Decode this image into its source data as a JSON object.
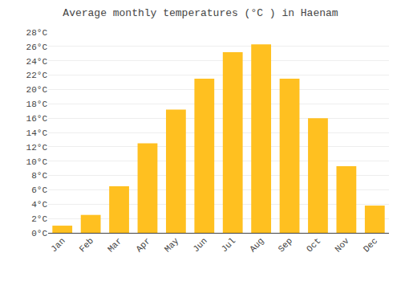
{
  "chart_data": {
    "type": "bar",
    "title": "Average monthly temperatures (°C ) in Haenam",
    "categories": [
      "Jan",
      "Feb",
      "Mar",
      "Apr",
      "May",
      "Jun",
      "Jul",
      "Aug",
      "Sep",
      "Oct",
      "Nov",
      "Dec"
    ],
    "values": [
      1.0,
      2.5,
      6.5,
      12.5,
      17.2,
      21.5,
      25.2,
      26.3,
      21.5,
      16.0,
      9.3,
      3.8
    ],
    "color": "#FFC020",
    "ylim": [
      0,
      28
    ],
    "yticks": [
      {
        "value": 0,
        "label": "0°C"
      },
      {
        "value": 2,
        "label": "2°C"
      },
      {
        "value": 4,
        "label": "4°C"
      },
      {
        "value": 6,
        "label": "6°C"
      },
      {
        "value": 8,
        "label": "8°C"
      },
      {
        "value": 10,
        "label": "10°C"
      },
      {
        "value": 12,
        "label": "12°C"
      },
      {
        "value": 14,
        "label": "14°C"
      },
      {
        "value": 16,
        "label": "16°C"
      },
      {
        "value": 18,
        "label": "18°C"
      },
      {
        "value": 20,
        "label": "20°C"
      },
      {
        "value": 22,
        "label": "22°C"
      },
      {
        "value": 24,
        "label": "24°C"
      },
      {
        "value": 26,
        "label": "26°C"
      },
      {
        "value": 28,
        "label": "28°C"
      }
    ],
    "grid": true
  }
}
